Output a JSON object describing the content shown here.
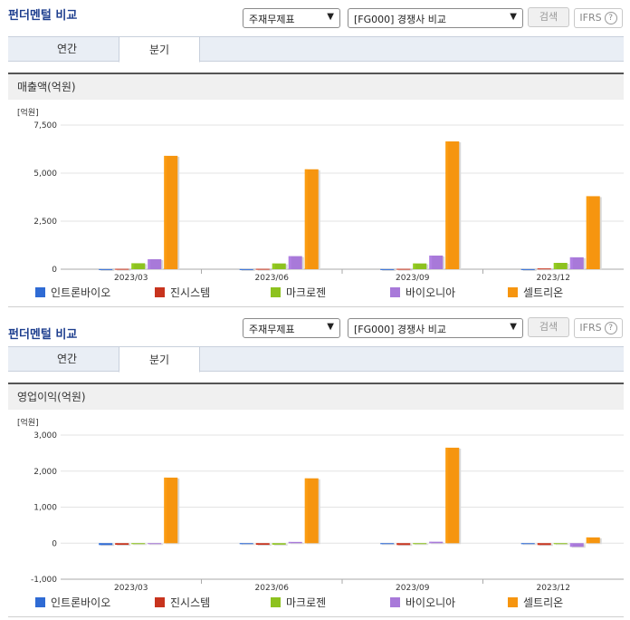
{
  "sections": [
    {
      "title": "펀더멘털 비교",
      "select1": "주재무제표",
      "select2": "[FG000] 경쟁사 비교",
      "search_label": "검색",
      "ifrs_label": "IFRS",
      "ifrs_help": "?",
      "tabs": [
        "연간",
        "분기"
      ],
      "active_tab": 1,
      "subtitle": "매출액(억원)"
    },
    {
      "title": "펀더멘털 비교",
      "select1": "주재무제표",
      "select2": "[FG000] 경쟁사 비교",
      "search_label": "검색",
      "ifrs_label": "IFRS",
      "ifrs_help": "?",
      "tabs": [
        "연간",
        "분기"
      ],
      "active_tab": 1,
      "subtitle": "영업이익(억원)"
    }
  ],
  "legend": [
    {
      "name": "인트론바이오",
      "color": "#2f6bd4"
    },
    {
      "name": "진시스템",
      "color": "#c8341e"
    },
    {
      "name": "마크로젠",
      "color": "#8dc21f"
    },
    {
      "name": "바이오니아",
      "color": "#a879d9"
    },
    {
      "name": "셀트리온",
      "color": "#f6950f"
    }
  ],
  "chart_data": [
    {
      "type": "bar",
      "unit": "[억원]",
      "categories": [
        "2023/03",
        "2023/06",
        "2023/09",
        "2023/12"
      ],
      "ylim": [
        0,
        7500
      ],
      "yticks": [
        0,
        2500,
        5000,
        7500
      ],
      "ytick_labels": [
        "0",
        "2,500",
        "5,000",
        "7,500"
      ],
      "grid": true,
      "legend_position": "bottom",
      "series": [
        {
          "name": "인트론바이오",
          "color": "#2f6bd4",
          "values": [
            5,
            5,
            5,
            5
          ]
        },
        {
          "name": "진시스템",
          "color": "#c8341e",
          "values": [
            20,
            20,
            20,
            40
          ]
        },
        {
          "name": "마크로젠",
          "color": "#8dc21f",
          "values": [
            310,
            300,
            300,
            330
          ]
        },
        {
          "name": "바이오니아",
          "color": "#a879d9",
          "values": [
            520,
            680,
            710,
            620
          ]
        },
        {
          "name": "셀트리온",
          "color": "#f6950f",
          "values": [
            5900,
            5200,
            6650,
            3800
          ]
        }
      ]
    },
    {
      "type": "bar",
      "unit": "[억원]",
      "categories": [
        "2023/03",
        "2023/06",
        "2023/09",
        "2023/12"
      ],
      "ylim": [
        -1000,
        3000
      ],
      "yticks": [
        -1000,
        0,
        1000,
        2000,
        3000
      ],
      "ytick_labels": [
        "-1,000",
        "0",
        "1,000",
        "2,000",
        "3,000"
      ],
      "grid": true,
      "legend_position": "bottom",
      "series": [
        {
          "name": "인트론바이오",
          "color": "#2f6bd4",
          "values": [
            -50,
            -10,
            -5,
            -5
          ]
        },
        {
          "name": "진시스템",
          "color": "#c8341e",
          "values": [
            -45,
            -45,
            -50,
            -50
          ]
        },
        {
          "name": "마크로젠",
          "color": "#8dc21f",
          "values": [
            -10,
            -40,
            -5,
            -20
          ]
        },
        {
          "name": "바이오니아",
          "color": "#a879d9",
          "values": [
            -5,
            35,
            40,
            -100
          ]
        },
        {
          "name": "셀트리온",
          "color": "#f6950f",
          "values": [
            1820,
            1800,
            2650,
            160
          ]
        }
      ]
    }
  ]
}
